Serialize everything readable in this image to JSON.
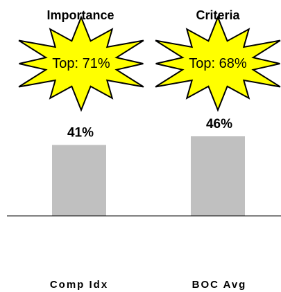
{
  "chart_data": {
    "type": "bar",
    "categories": [
      "Comp Idx",
      "BOC Avg"
    ],
    "values": [
      41,
      46
    ],
    "value_labels": [
      "41%",
      "46%"
    ],
    "headers": [
      "Importance",
      "Criteria"
    ],
    "callouts": [
      "Top: 71%",
      "Top: 68%"
    ],
    "ylim": [
      0,
      100
    ],
    "grid": false,
    "legend": "none"
  },
  "colors": {
    "bar": "#c0c0c0",
    "burst_fill": "#ffff00",
    "burst_stroke": "#000000",
    "baseline": "#000000"
  }
}
